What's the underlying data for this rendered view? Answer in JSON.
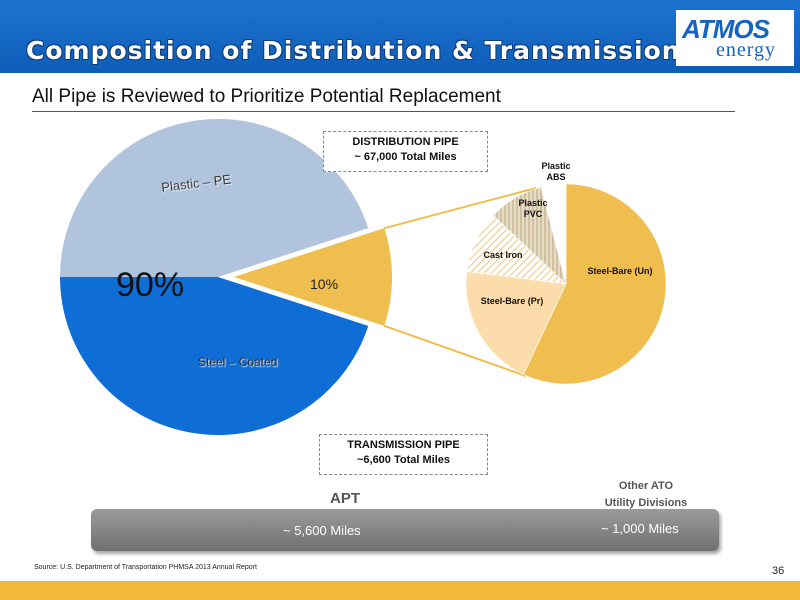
{
  "title": "Composition of Distribution & Transmission Pipe",
  "logo": {
    "top": "ATMOS",
    "bottom": "energy"
  },
  "subtitle": "All Pipe is Reviewed to Prioritize Potential Replacement",
  "distribution_box": {
    "line1": "DISTRIBUTION PIPE",
    "line2": "~ 67,000 Total Miles"
  },
  "transmission_box": {
    "line1": "TRANSMISSION PIPE",
    "line2": "~6,600 Total Miles"
  },
  "apt_label": "APT",
  "other_label": {
    "line1": "Other ATO",
    "line2": "Utility Divisions"
  },
  "miles": {
    "apt": "~ 5,600 Miles",
    "other": "~ 1,000 Miles"
  },
  "source": "Source: U.S. Department of Transportation PHMSA 2013 Annual Report",
  "page_number": "36",
  "colors": {
    "header": "#1565c0",
    "plastic_pe": "#b0c4dd",
    "steel_coated": "#0f6ed6",
    "bare": "#efbe4f",
    "steel_bare_pr": "#fcdcaa",
    "footer": "#f2b93b"
  },
  "chart_data": [
    {
      "type": "pie",
      "title": "",
      "slices": [
        {
          "label": "Plastic – PE",
          "value": 45
        },
        {
          "label": "Steel – Coated",
          "value": 45
        },
        {
          "label": "",
          "value": 10,
          "data_label": "10%"
        }
      ],
      "annotations": [
        "90%"
      ]
    },
    {
      "type": "pie",
      "title": "",
      "slices": [
        {
          "label": "Steel-Bare (Un)",
          "value": 57
        },
        {
          "label": "Steel-Bare (Pr)",
          "value": 20
        },
        {
          "label": "Cast Iron",
          "value": 10
        },
        {
          "label": "Plastic PVC",
          "value": 9
        },
        {
          "label": "Plastic ABS",
          "value": 4
        }
      ]
    }
  ]
}
